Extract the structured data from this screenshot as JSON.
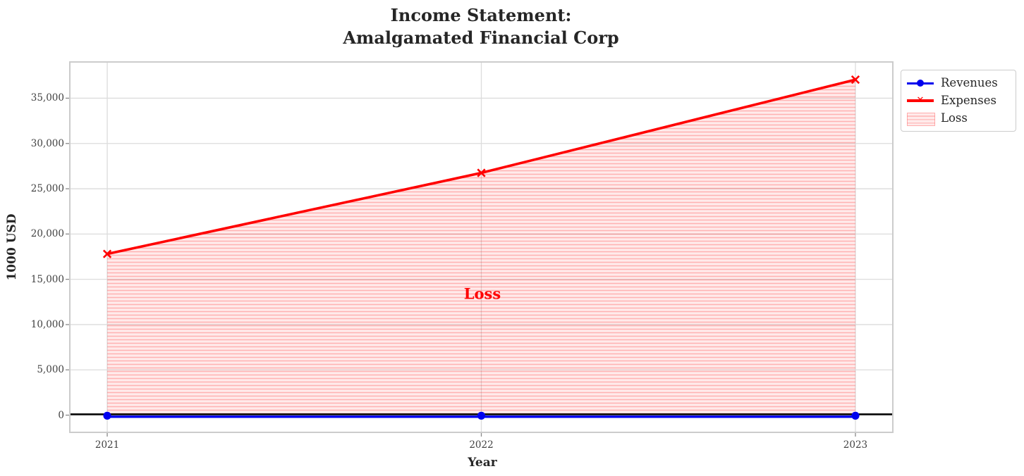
{
  "chart_data": {
    "type": "line",
    "title": "Income Statement:\nAmalgamated Financial Corp",
    "xlabel": "Year",
    "ylabel": "1000 USD",
    "x": [
      2021,
      2022,
      2023
    ],
    "series": [
      {
        "name": "Revenues",
        "values": [
          0,
          0,
          0
        ],
        "marker": "circle"
      },
      {
        "name": "Expenses",
        "values": [
          17800,
          26750,
          37050
        ],
        "marker": "x"
      }
    ],
    "loss_area": {
      "label": "Loss",
      "between": [
        "Revenues",
        "Expenses"
      ],
      "x_range": [
        2021,
        2023
      ],
      "hatch": "horizontal-lines"
    },
    "annotation": {
      "text": "Loss",
      "x": 2022,
      "y": 13500
    },
    "xlim": [
      2020.9,
      2023.1
    ],
    "ylim": [
      -1900,
      39000
    ],
    "xticks": [
      2021,
      2022,
      2023
    ],
    "xtick_labels": [
      "2021",
      "2022",
      "2023"
    ],
    "yticks": [
      0,
      5000,
      10000,
      15000,
      20000,
      25000,
      30000,
      35000
    ],
    "ytick_labels": [
      "0",
      "5,000",
      "10,000",
      "15,000",
      "20,000",
      "25,000",
      "30,000",
      "35,000"
    ],
    "grid": true,
    "zero_line": true,
    "legend_position": "upper-right-outside"
  },
  "legend": {
    "items": [
      {
        "label": "Revenues"
      },
      {
        "label": "Expenses"
      },
      {
        "label": "Loss"
      }
    ]
  },
  "colors": {
    "revenues": "#0000ee",
    "expenses": "#ff0000",
    "loss_fill": "rgba(255,0,0,0.08)",
    "loss_hatch": "rgba(255,0,0,0.24)",
    "grid": "#dcdcdc",
    "frame": "#cccccc",
    "zero_line": "#000000",
    "annotation": "#ff0000",
    "text": "#262626"
  }
}
